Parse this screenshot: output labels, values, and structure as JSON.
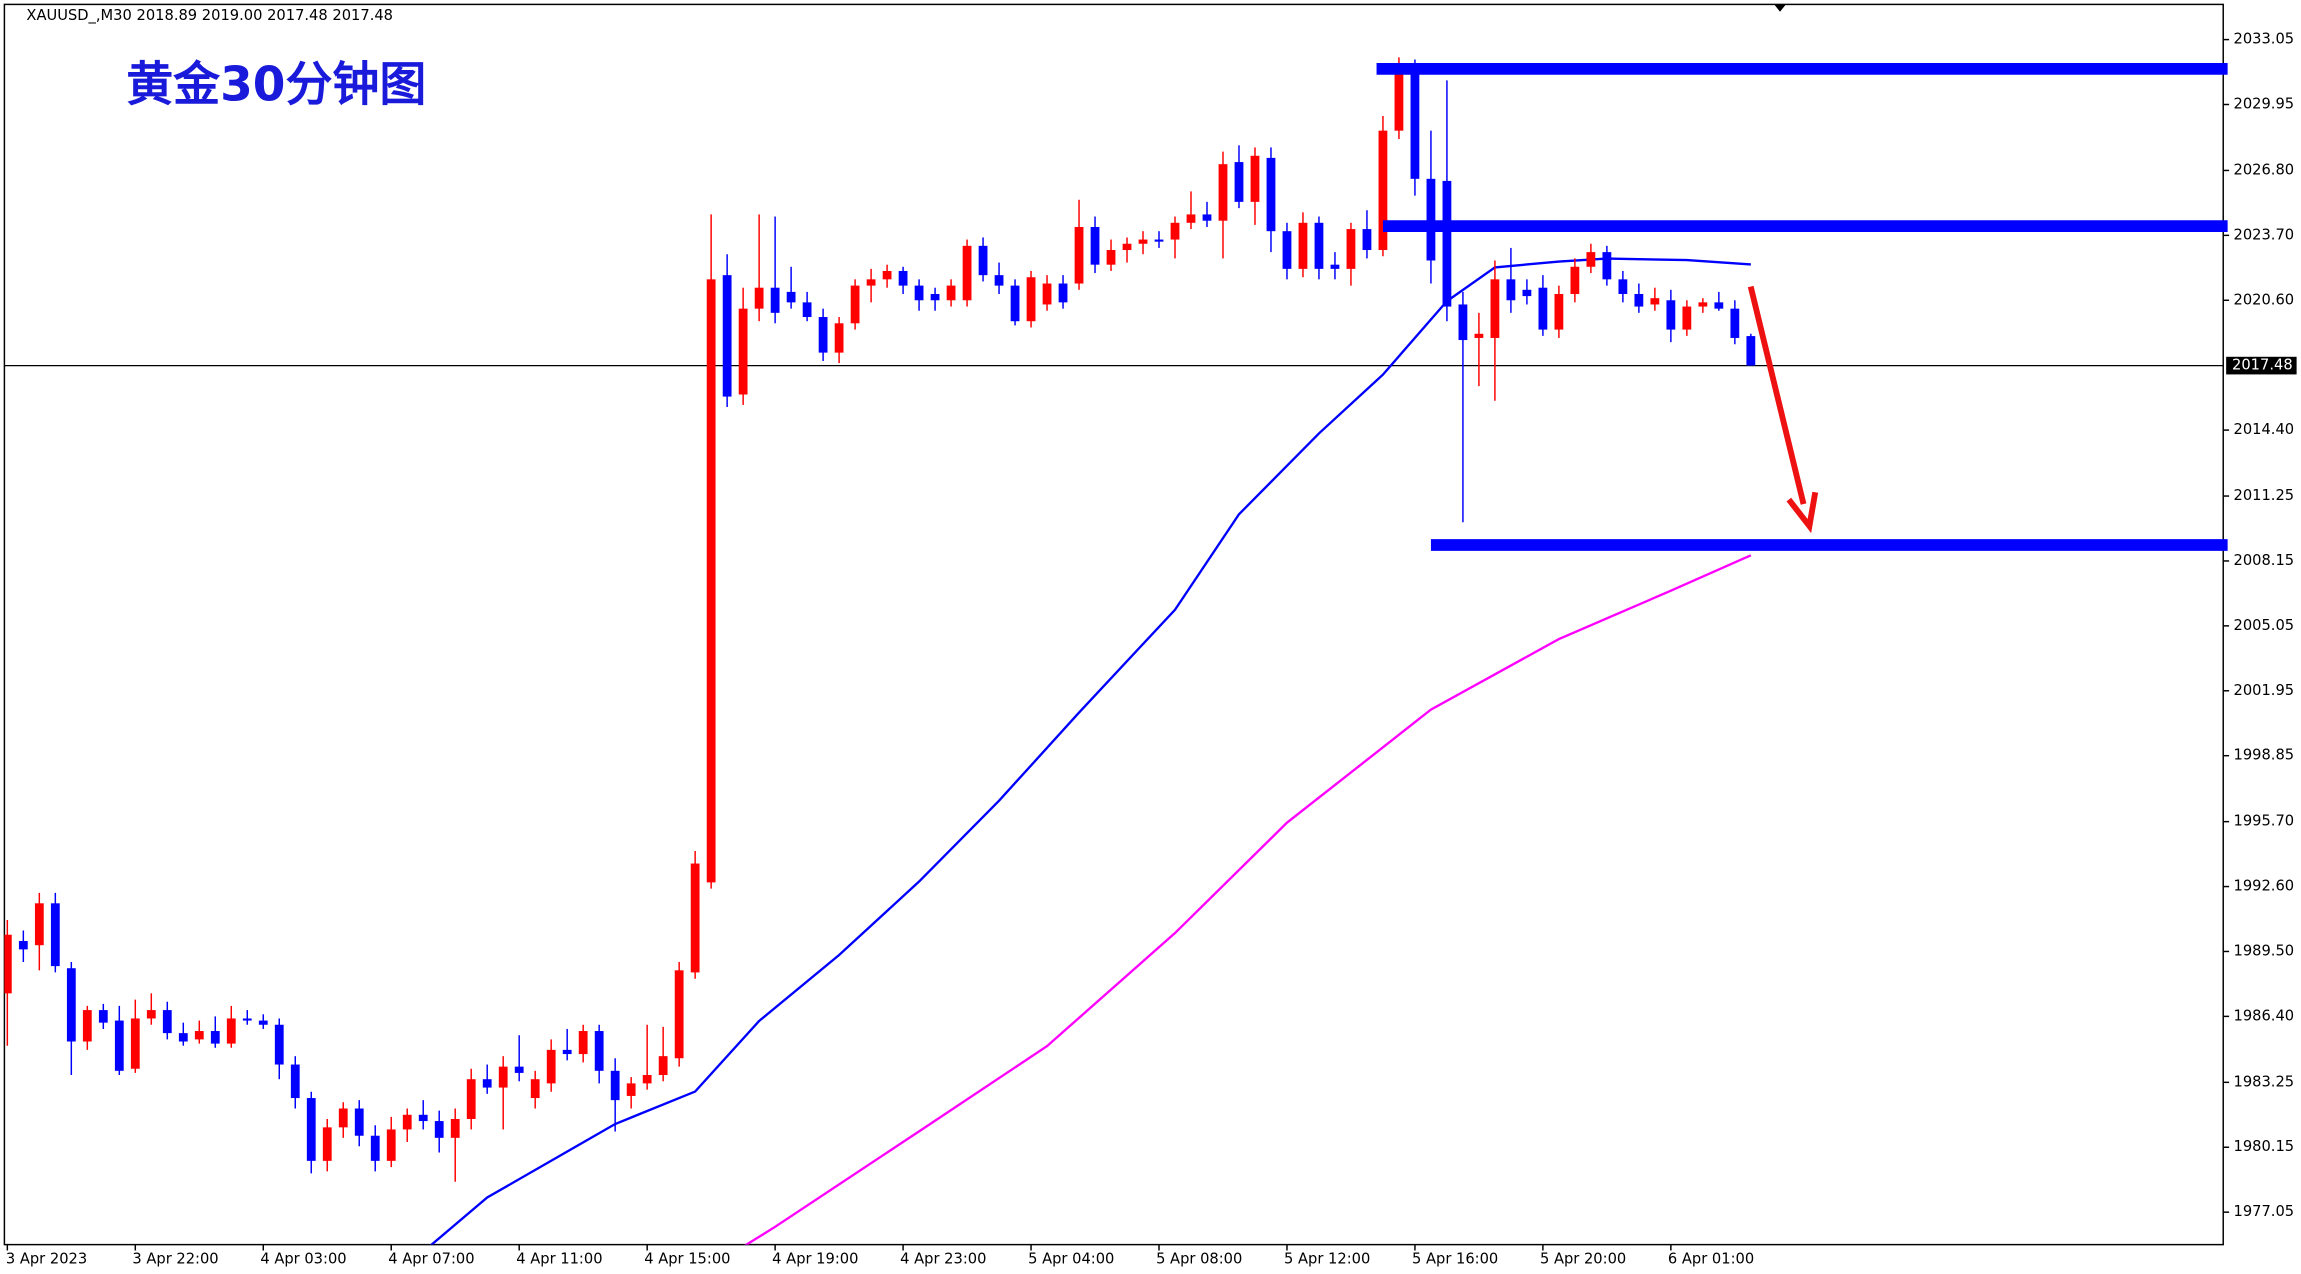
{
  "chart_data": {
    "type": "candlestick",
    "header": "XAUUSD_,M30  2018.89 2019.00 2017.48 2017.48",
    "title": "黄金30分钟图",
    "up_color": "#ff0000",
    "down_color": "#0000ff",
    "ylim": [
      1975.5,
      2034.73
    ],
    "yticks": [
      2033.05,
      2029.95,
      {
        "value": 2026.8,
        "label": "2026.80"
      },
      {
        "value": 2023.7,
        "label": "2023.70"
      },
      {
        "value": 2020.6,
        "label": "2020.60"
      },
      {
        "value": 2014.4,
        "label": "2014.40"
      },
      2011.25,
      2008.15,
      2005.05,
      2001.95,
      1998.85,
      {
        "value": 1995.7,
        "label": "1995.70"
      },
      {
        "value": 1992.6,
        "label": "1992.60"
      },
      {
        "value": 1989.5,
        "label": "1989.50"
      },
      {
        "value": 1986.4,
        "label": "1986.40"
      },
      1983.25,
      1980.15,
      1977.05
    ],
    "xticks": [
      {
        "value": 0,
        "label": "3 Apr 2023"
      },
      {
        "value": 8,
        "label": "3 Apr 22:00"
      },
      {
        "value": 16,
        "label": "4 Apr 03:00"
      },
      {
        "value": 24,
        "label": "4 Apr 07:00"
      },
      {
        "value": 32,
        "label": "4 Apr 11:00"
      },
      {
        "value": 40,
        "label": "4 Apr 15:00"
      },
      {
        "value": 48,
        "label": "4 Apr 19:00"
      },
      {
        "value": 56,
        "label": "4 Apr 23:00"
      },
      {
        "value": 64,
        "label": "5 Apr 04:00"
      },
      {
        "value": 72,
        "label": "5 Apr 08:00"
      },
      {
        "value": 80,
        "label": "5 Apr 12:00"
      },
      {
        "value": 88,
        "label": "5 Apr 16:00"
      },
      {
        "value": 96,
        "label": "5 Apr 20:00"
      },
      {
        "value": 104,
        "label": "6 Apr 01:00"
      }
    ],
    "current_price": 2017.48,
    "candles": [
      {
        "o": 1987.5,
        "h": 1991.0,
        "l": 1985.0,
        "c": 1990.3
      },
      {
        "o": 1990.0,
        "h": 1990.5,
        "l": 1989.0,
        "c": 1989.6
      },
      {
        "o": 1989.8,
        "h": 1992.3,
        "l": 1988.6,
        "c": 1991.8
      },
      {
        "o": 1991.8,
        "h": 1992.3,
        "l": 1988.5,
        "c": 1988.8
      },
      {
        "o": 1988.7,
        "h": 1989.0,
        "l": 1983.6,
        "c": 1985.2
      },
      {
        "o": 1985.2,
        "h": 1986.9,
        "l": 1984.8,
        "c": 1986.7
      },
      {
        "o": 1986.7,
        "h": 1987.0,
        "l": 1985.8,
        "c": 1986.1
      },
      {
        "o": 1986.2,
        "h": 1986.9,
        "l": 1983.6,
        "c": 1983.8
      },
      {
        "o": 1983.9,
        "h": 1987.2,
        "l": 1983.7,
        "c": 1986.3
      },
      {
        "o": 1986.3,
        "h": 1987.5,
        "l": 1986.0,
        "c": 1986.7
      },
      {
        "o": 1986.7,
        "h": 1987.1,
        "l": 1985.3,
        "c": 1985.6
      },
      {
        "o": 1985.6,
        "h": 1986.1,
        "l": 1985.0,
        "c": 1985.2
      },
      {
        "o": 1985.3,
        "h": 1986.2,
        "l": 1985.1,
        "c": 1985.7
      },
      {
        "o": 1985.7,
        "h": 1986.4,
        "l": 1984.9,
        "c": 1985.1
      },
      {
        "o": 1985.1,
        "h": 1986.9,
        "l": 1984.9,
        "c": 1986.3
      },
      {
        "o": 1986.3,
        "h": 1986.7,
        "l": 1986.0,
        "c": 1986.2
      },
      {
        "o": 1986.2,
        "h": 1986.5,
        "l": 1985.8,
        "c": 1986.0
      },
      {
        "o": 1986.0,
        "h": 1986.3,
        "l": 1983.4,
        "c": 1984.1
      },
      {
        "o": 1984.1,
        "h": 1984.5,
        "l": 1982.0,
        "c": 1982.5
      },
      {
        "o": 1982.5,
        "h": 1982.8,
        "l": 1978.9,
        "c": 1979.5
      },
      {
        "o": 1979.5,
        "h": 1981.5,
        "l": 1979.0,
        "c": 1981.1
      },
      {
        "o": 1981.1,
        "h": 1982.3,
        "l": 1980.6,
        "c": 1982.0
      },
      {
        "o": 1982.0,
        "h": 1982.4,
        "l": 1980.2,
        "c": 1980.7
      },
      {
        "o": 1980.7,
        "h": 1981.2,
        "l": 1979.0,
        "c": 1979.5
      },
      {
        "o": 1979.5,
        "h": 1981.6,
        "l": 1979.2,
        "c": 1981.0
      },
      {
        "o": 1981.0,
        "h": 1982.0,
        "l": 1980.4,
        "c": 1981.7
      },
      {
        "o": 1981.7,
        "h": 1982.4,
        "l": 1981.0,
        "c": 1981.4
      },
      {
        "o": 1981.4,
        "h": 1981.9,
        "l": 1979.9,
        "c": 1980.6
      },
      {
        "o": 1980.6,
        "h": 1982.0,
        "l": 1978.5,
        "c": 1981.5
      },
      {
        "o": 1981.5,
        "h": 1983.9,
        "l": 1981.0,
        "c": 1983.4
      },
      {
        "o": 1983.4,
        "h": 1984.1,
        "l": 1982.7,
        "c": 1983.0
      },
      {
        "o": 1983.0,
        "h": 1984.5,
        "l": 1981.0,
        "c": 1984.0
      },
      {
        "o": 1984.0,
        "h": 1985.5,
        "l": 1983.3,
        "c": 1983.7
      },
      {
        "o": 1982.5,
        "h": 1983.8,
        "l": 1982.0,
        "c": 1983.4
      },
      {
        "o": 1983.2,
        "h": 1985.3,
        "l": 1982.8,
        "c": 1984.8
      },
      {
        "o": 1984.8,
        "h": 1985.8,
        "l": 1984.3,
        "c": 1984.6
      },
      {
        "o": 1984.6,
        "h": 1986.0,
        "l": 1984.2,
        "c": 1985.7
      },
      {
        "o": 1985.7,
        "h": 1986.0,
        "l": 1983.2,
        "c": 1983.8
      },
      {
        "o": 1983.8,
        "h": 1984.4,
        "l": 1980.9,
        "c": 1982.4
      },
      {
        "o": 1982.6,
        "h": 1983.5,
        "l": 1982.0,
        "c": 1983.2
      },
      {
        "o": 1983.2,
        "h": 1986.0,
        "l": 1982.9,
        "c": 1983.6
      },
      {
        "o": 1983.6,
        "h": 1985.9,
        "l": 1983.3,
        "c": 1984.5
      },
      {
        "o": 1984.4,
        "h": 1989.0,
        "l": 1984.0,
        "c": 1988.6
      },
      {
        "o": 1988.5,
        "h": 1994.3,
        "l": 1988.2,
        "c": 1993.7
      },
      {
        "o": 1992.8,
        "h": 2024.7,
        "l": 1992.5,
        "c": 2021.6
      },
      {
        "o": 2021.8,
        "h": 2022.8,
        "l": 2015.5,
        "c": 2016.0
      },
      {
        "o": 2016.1,
        "h": 2021.2,
        "l": 2015.6,
        "c": 2020.2
      },
      {
        "o": 2020.2,
        "h": 2024.7,
        "l": 2019.6,
        "c": 2021.2
      },
      {
        "o": 2021.2,
        "h": 2024.6,
        "l": 2019.5,
        "c": 2020.0
      },
      {
        "o": 2021.0,
        "h": 2022.2,
        "l": 2020.2,
        "c": 2020.5
      },
      {
        "o": 2020.5,
        "h": 2021.0,
        "l": 2019.6,
        "c": 2019.8
      },
      {
        "o": 2019.8,
        "h": 2020.2,
        "l": 2017.7,
        "c": 2018.1
      },
      {
        "o": 2018.1,
        "h": 2019.8,
        "l": 2017.6,
        "c": 2019.5
      },
      {
        "o": 2019.5,
        "h": 2021.6,
        "l": 2019.2,
        "c": 2021.3
      },
      {
        "o": 2021.3,
        "h": 2022.1,
        "l": 2020.5,
        "c": 2021.6
      },
      {
        "o": 2021.6,
        "h": 2022.3,
        "l": 2021.2,
        "c": 2022.0
      },
      {
        "o": 2022.0,
        "h": 2022.2,
        "l": 2020.9,
        "c": 2021.3
      },
      {
        "o": 2021.3,
        "h": 2021.6,
        "l": 2020.1,
        "c": 2020.6
      },
      {
        "o": 2020.9,
        "h": 2021.2,
        "l": 2020.1,
        "c": 2020.6
      },
      {
        "o": 2020.6,
        "h": 2021.6,
        "l": 2020.3,
        "c": 2021.3
      },
      {
        "o": 2020.6,
        "h": 2023.5,
        "l": 2020.3,
        "c": 2023.2
      },
      {
        "o": 2023.2,
        "h": 2023.6,
        "l": 2021.5,
        "c": 2021.8
      },
      {
        "o": 2021.8,
        "h": 2022.4,
        "l": 2020.9,
        "c": 2021.3
      },
      {
        "o": 2021.3,
        "h": 2021.6,
        "l": 2019.4,
        "c": 2019.6
      },
      {
        "o": 2019.6,
        "h": 2022.0,
        "l": 2019.3,
        "c": 2021.7
      },
      {
        "o": 2020.4,
        "h": 2021.8,
        "l": 2020.1,
        "c": 2021.4
      },
      {
        "o": 2021.4,
        "h": 2021.8,
        "l": 2020.2,
        "c": 2020.5
      },
      {
        "o": 2021.4,
        "h": 2025.4,
        "l": 2021.1,
        "c": 2024.1
      },
      {
        "o": 2024.1,
        "h": 2024.6,
        "l": 2021.9,
        "c": 2022.3
      },
      {
        "o": 2022.3,
        "h": 2023.5,
        "l": 2022.0,
        "c": 2023.0
      },
      {
        "o": 2023.0,
        "h": 2023.6,
        "l": 2022.4,
        "c": 2023.3
      },
      {
        "o": 2023.3,
        "h": 2023.9,
        "l": 2022.8,
        "c": 2023.5
      },
      {
        "o": 2023.5,
        "h": 2023.9,
        "l": 2023.1,
        "c": 2023.4
      },
      {
        "o": 2023.5,
        "h": 2024.6,
        "l": 2022.6,
        "c": 2024.3
      },
      {
        "o": 2024.3,
        "h": 2025.8,
        "l": 2024.0,
        "c": 2024.7
      },
      {
        "o": 2024.7,
        "h": 2025.3,
        "l": 2024.1,
        "c": 2024.4
      },
      {
        "o": 2024.4,
        "h": 2027.7,
        "l": 2022.6,
        "c": 2027.1
      },
      {
        "o": 2027.2,
        "h": 2028.0,
        "l": 2025.0,
        "c": 2025.3
      },
      {
        "o": 2025.3,
        "h": 2027.9,
        "l": 2024.2,
        "c": 2027.5
      },
      {
        "o": 2027.4,
        "h": 2027.9,
        "l": 2022.9,
        "c": 2023.9
      },
      {
        "o": 2023.9,
        "h": 2024.3,
        "l": 2021.6,
        "c": 2022.1
      },
      {
        "o": 2022.1,
        "h": 2024.8,
        "l": 2021.7,
        "c": 2024.3
      },
      {
        "o": 2024.3,
        "h": 2024.6,
        "l": 2021.6,
        "c": 2022.1
      },
      {
        "o": 2022.3,
        "h": 2022.9,
        "l": 2021.6,
        "c": 2022.1
      },
      {
        "o": 2022.1,
        "h": 2024.3,
        "l": 2021.3,
        "c": 2024.0
      },
      {
        "o": 2024.0,
        "h": 2024.9,
        "l": 2022.6,
        "c": 2023.0
      },
      {
        "o": 2023.0,
        "h": 2029.4,
        "l": 2022.7,
        "c": 2028.7
      },
      {
        "o": 2028.7,
        "h": 2032.2,
        "l": 2028.3,
        "c": 2031.8
      },
      {
        "o": 2031.8,
        "h": 2032.1,
        "l": 2025.6,
        "c": 2026.4
      },
      {
        "o": 2026.4,
        "h": 2028.7,
        "l": 2021.4,
        "c": 2022.5
      },
      {
        "o": 2026.3,
        "h": 2031.1,
        "l": 2019.6,
        "c": 2020.3
      },
      {
        "o": 2020.4,
        "h": 2021.0,
        "l": 2010.0,
        "c": 2018.7
      },
      {
        "o": 2018.8,
        "h": 2020.0,
        "l": 2016.5,
        "c": 2019.0
      },
      {
        "o": 2018.8,
        "h": 2022.5,
        "l": 2015.8,
        "c": 2021.6
      },
      {
        "o": 2021.6,
        "h": 2023.1,
        "l": 2020.0,
        "c": 2020.6
      },
      {
        "o": 2021.1,
        "h": 2021.6,
        "l": 2020.4,
        "c": 2020.8
      },
      {
        "o": 2021.2,
        "h": 2021.8,
        "l": 2018.9,
        "c": 2019.2
      },
      {
        "o": 2019.2,
        "h": 2021.3,
        "l": 2018.8,
        "c": 2020.9
      },
      {
        "o": 2020.9,
        "h": 2022.6,
        "l": 2020.5,
        "c": 2022.2
      },
      {
        "o": 2022.2,
        "h": 2023.3,
        "l": 2021.9,
        "c": 2022.9
      },
      {
        "o": 2022.9,
        "h": 2023.2,
        "l": 2021.3,
        "c": 2021.6
      },
      {
        "o": 2021.6,
        "h": 2022.0,
        "l": 2020.5,
        "c": 2020.9
      },
      {
        "o": 2020.9,
        "h": 2021.4,
        "l": 2020.0,
        "c": 2020.3
      },
      {
        "o": 2020.4,
        "h": 2021.2,
        "l": 2020.1,
        "c": 2020.7
      },
      {
        "o": 2020.6,
        "h": 2021.1,
        "l": 2018.6,
        "c": 2019.2
      },
      {
        "o": 2019.2,
        "h": 2020.6,
        "l": 2018.9,
        "c": 2020.3
      },
      {
        "o": 2020.3,
        "h": 2020.7,
        "l": 2020.0,
        "c": 2020.5
      },
      {
        "o": 2020.5,
        "h": 2021.0,
        "l": 2020.1,
        "c": 2020.2
      },
      {
        "o": 2020.2,
        "h": 2020.6,
        "l": 2018.5,
        "c": 2018.8
      },
      {
        "o": 2018.89,
        "h": 2019.0,
        "l": 2017.48,
        "c": 2017.48
      }
    ],
    "lines": [
      {
        "color": "#0000ff",
        "x": [
          26,
          30,
          38,
          43,
          47,
          52,
          57,
          62,
          67,
          73,
          77,
          82,
          86,
          90,
          93,
          97,
          100,
          105,
          109
        ],
        "values": [
          1975.16,
          1977.75,
          1981.26,
          1982.81,
          1986.18,
          1989.33,
          1992.84,
          1996.7,
          2000.91,
          2005.82,
          2010.38,
          2014.24,
          2017.05,
          2020.56,
          2022.17,
          2022.45,
          2022.59,
          2022.52,
          2022.31
        ]
      },
      {
        "color": "#ff00ff",
        "x": [
          44,
          48,
          57,
          65,
          73,
          80,
          89,
          97,
          104,
          109
        ],
        "values": [
          1974.45,
          1976.35,
          1980.91,
          1984.98,
          1990.38,
          1995.65,
          2001.05,
          2004.42,
          2006.73,
          2008.42
        ]
      }
    ],
    "levels": [
      {
        "value": 2031.65,
        "from": 85.6,
        "color": "#0000ff"
      },
      {
        "value": 2024.14,
        "from": 86,
        "color": "#0000ff"
      },
      {
        "value": 2008.91,
        "from": 89,
        "color": "#0000ff"
      }
    ]
  }
}
